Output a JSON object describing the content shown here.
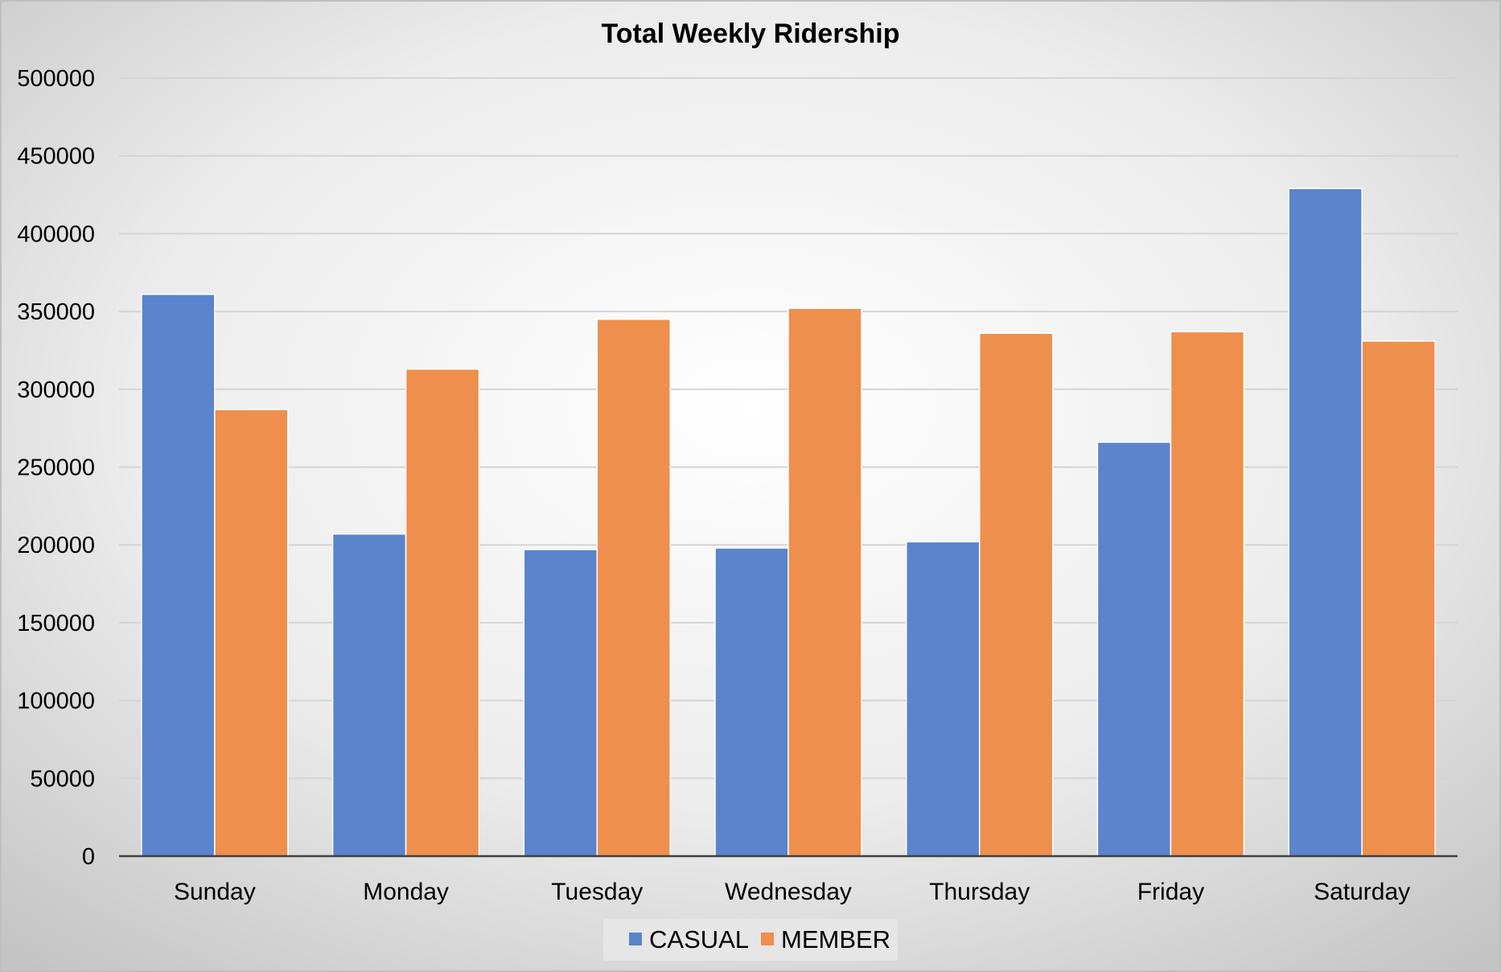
{
  "chart_data": {
    "type": "bar",
    "title": "Total Weekly Ridership",
    "xlabel": "",
    "ylabel": "",
    "categories": [
      "Sunday",
      "Monday",
      "Tuesday",
      "Wednesday",
      "Thursday",
      "Friday",
      "Saturday"
    ],
    "series": [
      {
        "name": "CASUAL",
        "color": "#5B84CC",
        "values": [
          361000,
          207000,
          197000,
          198000,
          202000,
          266000,
          429000
        ]
      },
      {
        "name": "MEMBER",
        "color": "#EE8F4E",
        "values": [
          287000,
          313000,
          345000,
          352000,
          336000,
          337000,
          331000
        ]
      }
    ],
    "ylim": [
      0,
      500000
    ],
    "yticks": [
      "0",
      "50000",
      "100000",
      "150000",
      "200000",
      "250000",
      "300000",
      "350000",
      "400000",
      "450000",
      "500000"
    ],
    "grid": true,
    "legend": "bottom-center",
    "background": "radial-gradient"
  }
}
